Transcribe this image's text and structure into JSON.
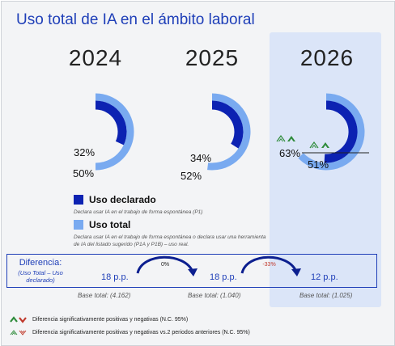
{
  "title": "Uso total de IA en el ámbito laboral",
  "colors": {
    "declared": "#0c22b2",
    "total": "#79aaf0",
    "accent": "#1f3fb8",
    "up": "#2e8b3a",
    "down": "#c0392b"
  },
  "chart_data": {
    "type": "donut",
    "title": "Uso total de IA en el ámbito laboral",
    "categories": [
      "2024",
      "2025",
      "2026"
    ],
    "series": [
      {
        "name": "Uso declarado",
        "values": [
          32,
          34,
          51
        ]
      },
      {
        "name": "Uso total",
        "values": [
          50,
          52,
          63
        ]
      }
    ],
    "labels": {
      "declared": [
        "32%",
        "34%",
        "51%"
      ],
      "total": [
        "50%",
        "52%",
        "63%"
      ]
    },
    "highlighted": "2026"
  },
  "legend": {
    "declared_title": "Uso declarado",
    "declared_desc": "Declara usar IA en el trabajo de forma espontánea (P1)",
    "total_title": "Uso total",
    "total_desc": "Declara usar IA en el trabajo de forma espontánea o declara usar una herramienta de IA del listado sugerido (P1A y P1B) – uso real."
  },
  "difference": {
    "label": "Diferencia:",
    "sub": "(Uso Total – Uso declarado)",
    "values": [
      "18 p.p.",
      "18 p.p.",
      "12 p.p."
    ],
    "changes": [
      "0%",
      "-33%"
    ]
  },
  "base": [
    "Base total: (4.162)",
    "Base total: (1.040)",
    "Base total: (1.025)"
  ],
  "footnotes": [
    "Diferencia significativamente positivas y negativas (N.C. 95%)",
    "Diferencia significativamente positivas y negativas vs.2 periodos anteriores (N.C. 95%)"
  ]
}
